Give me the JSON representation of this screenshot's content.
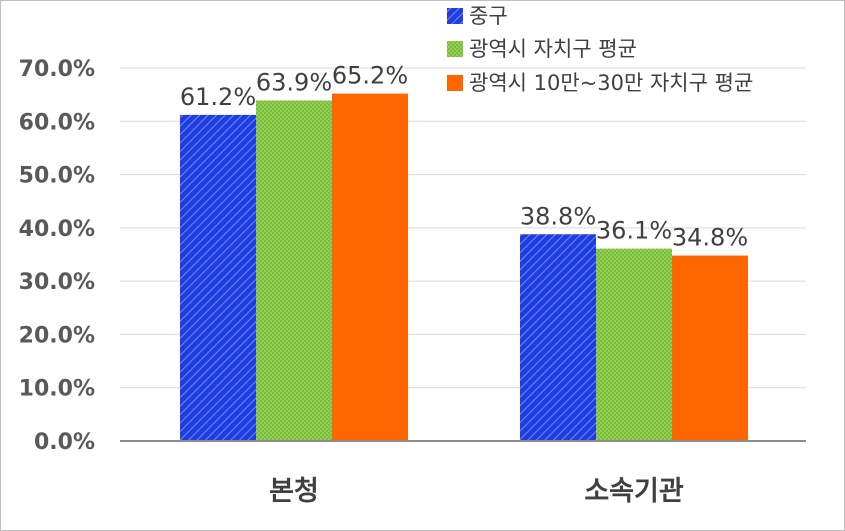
{
  "chart_data": {
    "type": "bar",
    "categories": [
      "본청",
      "소속기관"
    ],
    "series": [
      {
        "name": "중구",
        "values": [
          61.2,
          38.8
        ],
        "color": "#1f3de0",
        "pattern": "diagonal-stripes"
      },
      {
        "name": "광역시 자치구 평균",
        "values": [
          63.9,
          36.1
        ],
        "color": "#92d050",
        "pattern": "dots"
      },
      {
        "name": "광역시 10만~30만 자치구 평균",
        "values": [
          65.2,
          34.8
        ],
        "color": "#ff6600",
        "pattern": "solid"
      }
    ],
    "data_labels": [
      [
        "61.2%",
        "38.8%"
      ],
      [
        "63.9%",
        "36.1%"
      ],
      [
        "65.2%",
        "34.8%"
      ]
    ],
    "yticks": [
      0,
      10,
      20,
      30,
      40,
      50,
      60,
      70
    ],
    "ytick_labels": [
      "0.0%",
      "10.0%",
      "20.0%",
      "30.0%",
      "40.0%",
      "50.0%",
      "60.0%",
      "70.0%"
    ],
    "ylim": [
      0,
      70
    ],
    "grid": true,
    "legend_position": "top-right",
    "title": "",
    "xlabel": "",
    "ylabel": ""
  }
}
